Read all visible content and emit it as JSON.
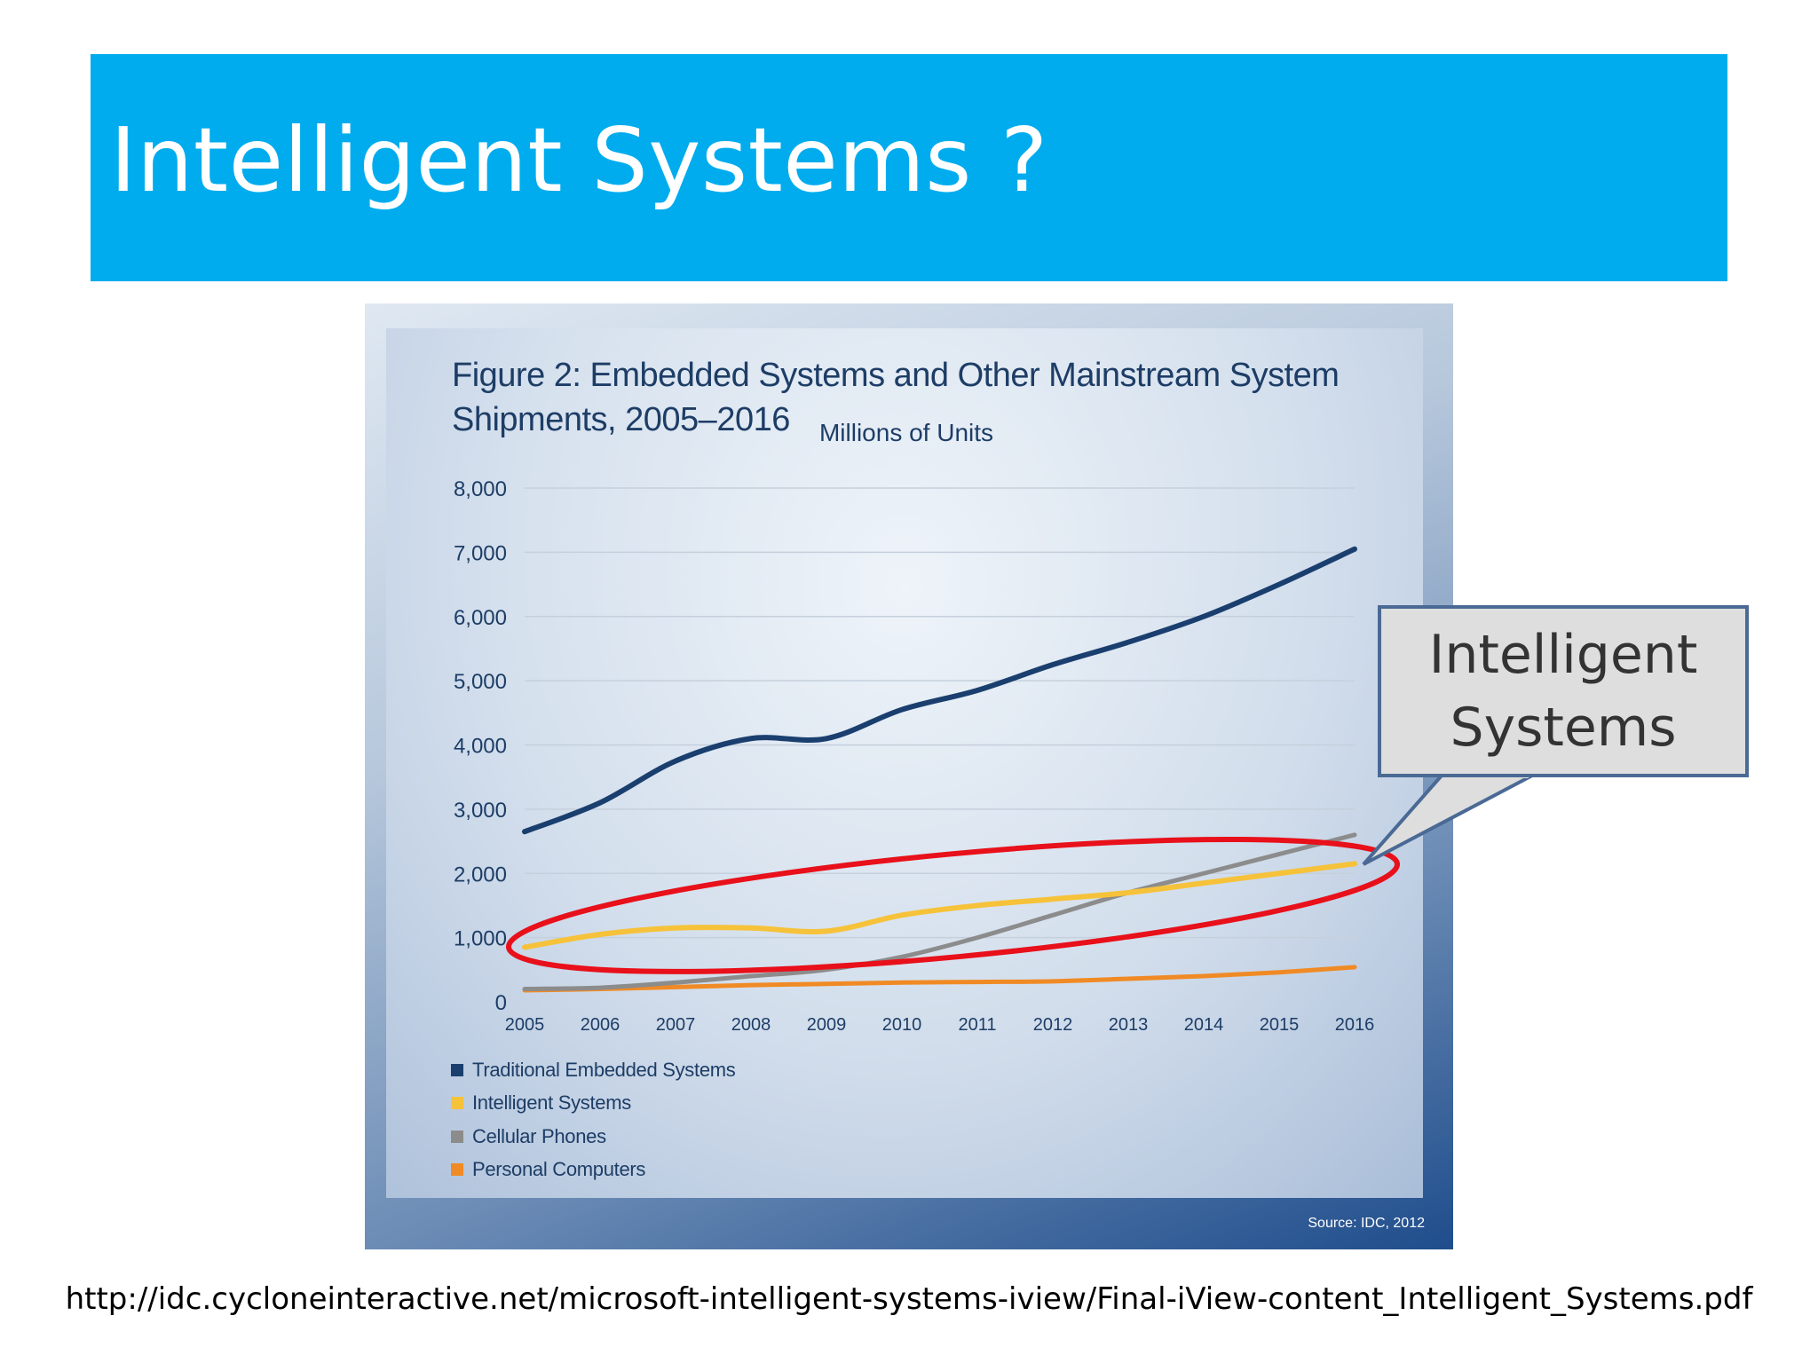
{
  "slide": {
    "title": "Intelligent Systems ?",
    "source_url": "http://idc.cycloneinteractive.net/microsoft-intelligent-systems-iview/Final-iView-content_Intelligent_Systems.pdf"
  },
  "callout": {
    "line1": "Intelligent",
    "line2": "Systems"
  },
  "figure": {
    "title_line1": "Figure 2: Embedded Systems and Other Mainstream System",
    "title_line2": "Shipments, 2005–2016",
    "subtitle": "Millions of Units",
    "source": "Source: IDC, 2012"
  },
  "chart_data": {
    "type": "line",
    "title": "Figure 2: Embedded Systems and Other Mainstream System Shipments, 2005–2016",
    "ylabel": "Millions of Units",
    "xlabel": "",
    "x": [
      "2005",
      "2006",
      "2007",
      "2008",
      "2009",
      "2010",
      "2011",
      "2012",
      "2013",
      "2014",
      "2015",
      "2016"
    ],
    "ylim": [
      0,
      8000
    ],
    "yticks": [
      0,
      1000,
      2000,
      3000,
      4000,
      5000,
      6000,
      7000,
      8000
    ],
    "ytick_labels": [
      "0",
      "1,000",
      "2,000",
      "3,000",
      "4,000",
      "5,000",
      "6,000",
      "7,000",
      "8,000"
    ],
    "grid": "horizontal",
    "legend_position": "bottom-left",
    "series": [
      {
        "name": "Traditional Embedded Systems",
        "color": "#1a3f6f",
        "values": [
          2650,
          3100,
          3750,
          4100,
          4100,
          4550,
          4850,
          5250,
          5600,
          6000,
          6500,
          7050
        ]
      },
      {
        "name": "Intelligent Systems",
        "color": "#f6c23a",
        "values": [
          850,
          1050,
          1150,
          1150,
          1100,
          1350,
          1500,
          1600,
          1700,
          1850,
          2000,
          2150
        ]
      },
      {
        "name": "Cellular Phones",
        "color": "#8c8c8c",
        "values": [
          200,
          220,
          300,
          400,
          500,
          700,
          1000,
          1350,
          1700,
          2000,
          2300,
          2600
        ]
      },
      {
        "name": "Personal Computers",
        "color": "#f08a24",
        "values": [
          180,
          200,
          230,
          260,
          280,
          300,
          310,
          320,
          360,
          400,
          460,
          540
        ]
      }
    ],
    "highlight": {
      "target_series": "Intelligent Systems",
      "color": "#e8101a"
    }
  }
}
